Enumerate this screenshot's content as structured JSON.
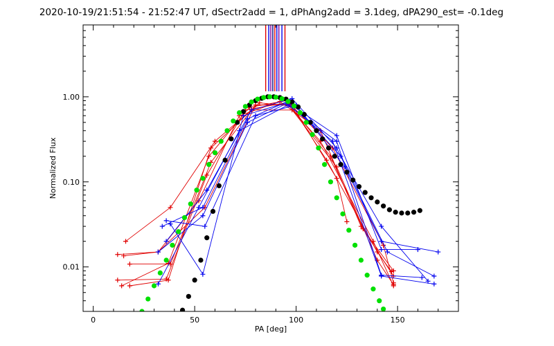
{
  "chart_data": {
    "type": "line",
    "title": "2020-10-19/21:51:54 - 21:52:47 UT, dSectr2add = 1, dPhAng2add = 3.1deg, dPA290_est= -0.1deg",
    "xlabel": "PA [deg]",
    "ylabel": "Normalized Flux",
    "xlim": [
      -5,
      180
    ],
    "ylim": [
      0.003,
      7
    ],
    "yscale": "log",
    "grid": false,
    "x_ticks": [
      0,
      50,
      100,
      150
    ],
    "x_tick_labels": [
      "0",
      "50",
      "100",
      "150"
    ],
    "y_ticks": [
      0.01,
      0.1,
      1.0
    ],
    "y_tick_labels": [
      "0.01",
      "0.10",
      "1.00"
    ],
    "colors": {
      "red": "#e00000",
      "blue": "#0000ee",
      "black": "#000000",
      "green": "#00e000",
      "dark_blue": "#000080",
      "purple": "#8000a0"
    },
    "vertical_markers": [
      {
        "x": 85.0,
        "color": "#e00000"
      },
      {
        "x": 86.5,
        "color": "#0000ee"
      },
      {
        "x": 87.5,
        "color": "#8000a0"
      },
      {
        "x": 88.5,
        "color": "#000080"
      },
      {
        "x": 89.5,
        "color": "#e00000"
      },
      {
        "x": 90.5,
        "color": "#0000ee"
      },
      {
        "x": 91.5,
        "color": "#8000a0"
      },
      {
        "x": 93.0,
        "color": "#0000ee"
      },
      {
        "x": 94.5,
        "color": "#e00000"
      }
    ],
    "series": [
      {
        "name": "red-1",
        "color": "#e00000",
        "x": [
          12,
          32,
          52,
          72,
          92,
          112,
          132,
          148
        ],
        "y": [
          0.014,
          0.015,
          0.06,
          0.6,
          0.88,
          0.4,
          0.03,
          0.009
        ]
      },
      {
        "name": "red-2",
        "color": "#e00000",
        "x": [
          12,
          36,
          56,
          75,
          95,
          112,
          138,
          148
        ],
        "y": [
          0.007,
          0.0072,
          0.12,
          0.7,
          0.85,
          0.3,
          0.02,
          0.006
        ]
      },
      {
        "name": "red-3",
        "color": "#e00000",
        "x": [
          14,
          37,
          57,
          77,
          95,
          117,
          133,
          148
        ],
        "y": [
          0.006,
          0.011,
          0.2,
          0.75,
          0.9,
          0.2,
          0.028,
          0.0078
        ]
      },
      {
        "name": "red-4",
        "color": "#e00000",
        "x": [
          15,
          32,
          55,
          80,
          98,
          120,
          125
        ],
        "y": [
          0.0135,
          0.015,
          0.05,
          0.8,
          0.8,
          0.11,
          0.034
        ]
      },
      {
        "name": "red-5",
        "color": "#e00000",
        "x": [
          16,
          38,
          60,
          82,
          98,
          118,
          143,
          148
        ],
        "y": [
          0.02,
          0.05,
          0.3,
          0.85,
          0.78,
          0.25,
          0.018,
          0.0065
        ]
      },
      {
        "name": "red-6",
        "color": "#e00000",
        "x": [
          18,
          38,
          58,
          80,
          97,
          115,
          140,
          147
        ],
        "y": [
          0.0108,
          0.0108,
          0.17,
          0.8,
          0.82,
          0.18,
          0.015,
          0.0088
        ]
      },
      {
        "name": "red-7",
        "color": "#e00000",
        "x": [
          18,
          37,
          58,
          78,
          98,
          120,
          140,
          148
        ],
        "y": [
          0.006,
          0.007,
          0.25,
          0.7,
          0.7,
          0.15,
          0.012,
          0.0062
        ]
      },
      {
        "name": "blue-1",
        "color": "#0000ee",
        "x": [
          32,
          54,
          76,
          96,
          120,
          142,
          160
        ],
        "y": [
          0.015,
          0.04,
          0.5,
          0.85,
          0.35,
          0.016,
          0.016
        ]
      },
      {
        "name": "blue-2",
        "color": "#0000ee",
        "x": [
          32,
          52,
          72,
          96,
          120,
          142,
          162
        ],
        "y": [
          0.0063,
          0.05,
          0.4,
          0.8,
          0.3,
          0.008,
          0.0075
        ]
      },
      {
        "name": "blue-3",
        "color": "#0000ee",
        "x": [
          34,
          54,
          76,
          97,
          122,
          142,
          165
        ],
        "y": [
          0.03,
          0.05,
          0.55,
          0.9,
          0.2,
          0.03,
          0.0068
        ]
      },
      {
        "name": "blue-4",
        "color": "#0000ee",
        "x": [
          36,
          56,
          78,
          98,
          120,
          145,
          168
        ],
        "y": [
          0.02,
          0.08,
          0.7,
          0.95,
          0.25,
          0.015,
          0.0078
        ]
      },
      {
        "name": "blue-5",
        "color": "#0000ee",
        "x": [
          38,
          54,
          74,
          95,
          118,
          142,
          168
        ],
        "y": [
          0.032,
          0.0082,
          0.6,
          0.85,
          0.3,
          0.0078,
          0.0063
        ]
      },
      {
        "name": "blue-6",
        "color": "#0000ee",
        "x": [
          36,
          55,
          80,
          100,
          124,
          142,
          170
        ],
        "y": [
          0.035,
          0.03,
          0.6,
          0.8,
          0.15,
          0.02,
          0.015
        ]
      },
      {
        "name": "black-dots",
        "color": "#000000",
        "marker": "dot",
        "x": [
          44,
          47,
          50,
          53,
          56,
          59,
          62,
          65,
          68,
          71,
          74,
          77,
          80,
          83,
          86,
          89,
          92,
          95,
          98,
          101,
          104,
          107,
          110,
          113,
          116,
          119,
          122,
          125,
          128,
          131,
          134,
          137,
          140,
          143,
          146,
          149,
          152,
          155,
          158,
          161
        ],
        "y": [
          0.0031,
          0.0045,
          0.007,
          0.012,
          0.022,
          0.045,
          0.09,
          0.18,
          0.32,
          0.5,
          0.67,
          0.8,
          0.9,
          0.96,
          1.0,
          1.0,
          0.98,
          0.94,
          0.87,
          0.76,
          0.62,
          0.5,
          0.4,
          0.32,
          0.25,
          0.2,
          0.16,
          0.13,
          0.105,
          0.088,
          0.075,
          0.065,
          0.058,
          0.052,
          0.047,
          0.044,
          0.043,
          0.043,
          0.044,
          0.046
        ]
      },
      {
        "name": "green-dots",
        "color": "#00e000",
        "marker": "dot",
        "x": [
          24,
          27,
          30,
          33,
          36,
          39,
          42,
          45,
          48,
          51,
          54,
          57,
          60,
          63,
          66,
          69,
          72,
          75,
          78,
          81,
          84,
          87,
          90,
          93,
          96,
          99,
          102,
          105,
          108,
          111,
          114,
          117,
          120,
          123,
          126,
          129,
          132,
          135,
          138,
          141,
          143
        ],
        "y": [
          0.003,
          0.0042,
          0.006,
          0.0085,
          0.012,
          0.018,
          0.026,
          0.038,
          0.055,
          0.08,
          0.11,
          0.16,
          0.22,
          0.3,
          0.4,
          0.52,
          0.65,
          0.77,
          0.87,
          0.94,
          0.98,
          1.0,
          0.99,
          0.95,
          0.88,
          0.78,
          0.65,
          0.5,
          0.36,
          0.25,
          0.16,
          0.1,
          0.065,
          0.042,
          0.027,
          0.018,
          0.012,
          0.008,
          0.0055,
          0.004,
          0.0032
        ]
      }
    ]
  }
}
